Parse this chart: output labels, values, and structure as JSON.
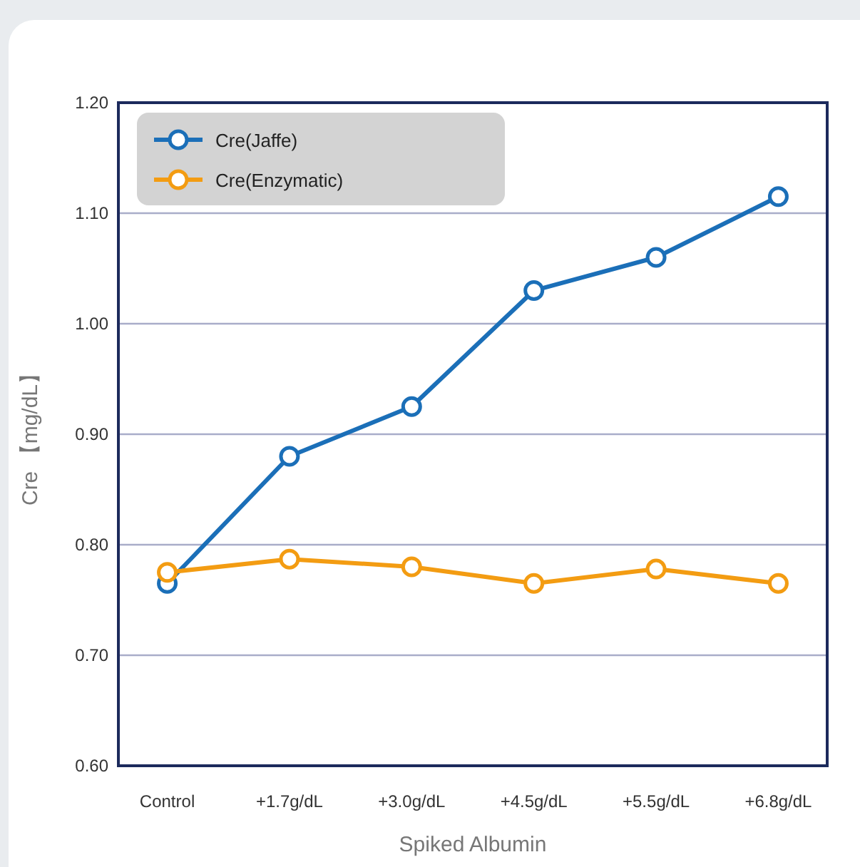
{
  "chart_data": {
    "type": "line",
    "xlabel": "Spiked Albumin",
    "ylabel": "Cre 【mg/dL】",
    "categories": [
      "Control",
      "+1.7g/dL",
      "+3.0g/dL",
      "+4.5g/dL",
      "+5.5g/dL",
      "+6.8g/dL"
    ],
    "series": [
      {
        "name": "Cre(Jaffe)",
        "color": "#1b6fb8",
        "values": [
          0.765,
          0.88,
          0.925,
          1.03,
          1.06,
          1.115
        ]
      },
      {
        "name": "Cre(Enzymatic)",
        "color": "#f39c12",
        "values": [
          0.775,
          0.787,
          0.78,
          0.765,
          0.778,
          0.765
        ]
      }
    ],
    "ylim": [
      0.6,
      1.2
    ],
    "yticks": [
      {
        "value": 0.6,
        "label": "0.60"
      },
      {
        "value": 0.7,
        "label": "0.70"
      },
      {
        "value": 0.8,
        "label": "0.80"
      },
      {
        "value": 0.9,
        "label": "0.90"
      },
      {
        "value": 1.0,
        "label": "1.00"
      },
      {
        "value": 1.1,
        "label": "1.10"
      },
      {
        "value": 1.2,
        "label": "1.20"
      }
    ],
    "grid": "y",
    "legend": "top left",
    "marker": "circle",
    "line_style": "solid"
  }
}
